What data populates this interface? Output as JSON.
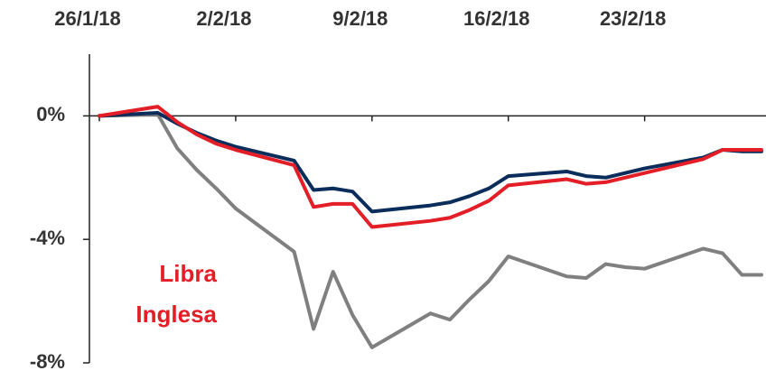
{
  "chart_data": {
    "type": "line",
    "x": [
      "2018-01-26",
      "2018-01-29",
      "2018-01-30",
      "2018-01-31",
      "2018-02-01",
      "2018-02-02",
      "2018-02-05",
      "2018-02-06",
      "2018-02-07",
      "2018-02-08",
      "2018-02-09",
      "2018-02-12",
      "2018-02-13",
      "2018-02-14",
      "2018-02-15",
      "2018-02-16",
      "2018-02-19",
      "2018-02-20",
      "2018-02-21",
      "2018-02-22",
      "2018-02-23",
      "2018-02-26",
      "2018-02-27",
      "2018-02-28",
      "2018-03-01"
    ],
    "xlim": [
      "2018-01-26",
      "2018-03-01"
    ],
    "xticks": [
      {
        "value": "2018-01-26",
        "label": "26/1/18"
      },
      {
        "value": "2018-02-02",
        "label": "2/2/18"
      },
      {
        "value": "2018-02-09",
        "label": "9/2/18"
      },
      {
        "value": "2018-02-16",
        "label": "16/2/18"
      },
      {
        "value": "2018-02-23",
        "label": "23/2/18"
      }
    ],
    "ylim": [
      -8,
      2
    ],
    "yticks": [
      {
        "value": 0,
        "label": "0%"
      },
      {
        "value": -4,
        "label": "-4%"
      },
      {
        "value": -8,
        "label": "-8%"
      }
    ],
    "series": [
      {
        "color": "#808080",
        "values": [
          0,
          0.05,
          -1.05,
          -1.75,
          -2.35,
          -3.0,
          -4.4,
          -6.9,
          -5.05,
          -6.45,
          -7.5,
          -6.4,
          -6.6,
          -5.95,
          -5.35,
          -4.55,
          -5.2,
          -5.25,
          -4.8,
          -4.9,
          -4.95,
          -4.3,
          -4.45,
          -5.15,
          -5.15
        ]
      },
      {
        "color": "#0b2d5b",
        "values": [
          0,
          0.1,
          -0.25,
          -0.55,
          -0.8,
          -1.0,
          -1.45,
          -2.4,
          -2.35,
          -2.45,
          -3.1,
          -2.9,
          -2.8,
          -2.6,
          -2.35,
          -1.95,
          -1.8,
          -1.95,
          -2.0,
          -1.85,
          -1.7,
          -1.35,
          -1.1,
          -1.15,
          -1.15
        ]
      },
      {
        "color": "#e31e26",
        "values": [
          0,
          0.3,
          -0.2,
          -0.6,
          -0.9,
          -1.1,
          -1.6,
          -2.95,
          -2.85,
          -2.85,
          -3.6,
          -3.4,
          -3.3,
          -3.05,
          -2.75,
          -2.25,
          -2.05,
          -2.2,
          -2.15,
          -2.0,
          -1.85,
          -1.4,
          -1.1,
          -1.1,
          -1.1
        ]
      }
    ],
    "annotations": [
      "Libra",
      "Inglesa"
    ],
    "annotation_color": "#e31e26"
  }
}
